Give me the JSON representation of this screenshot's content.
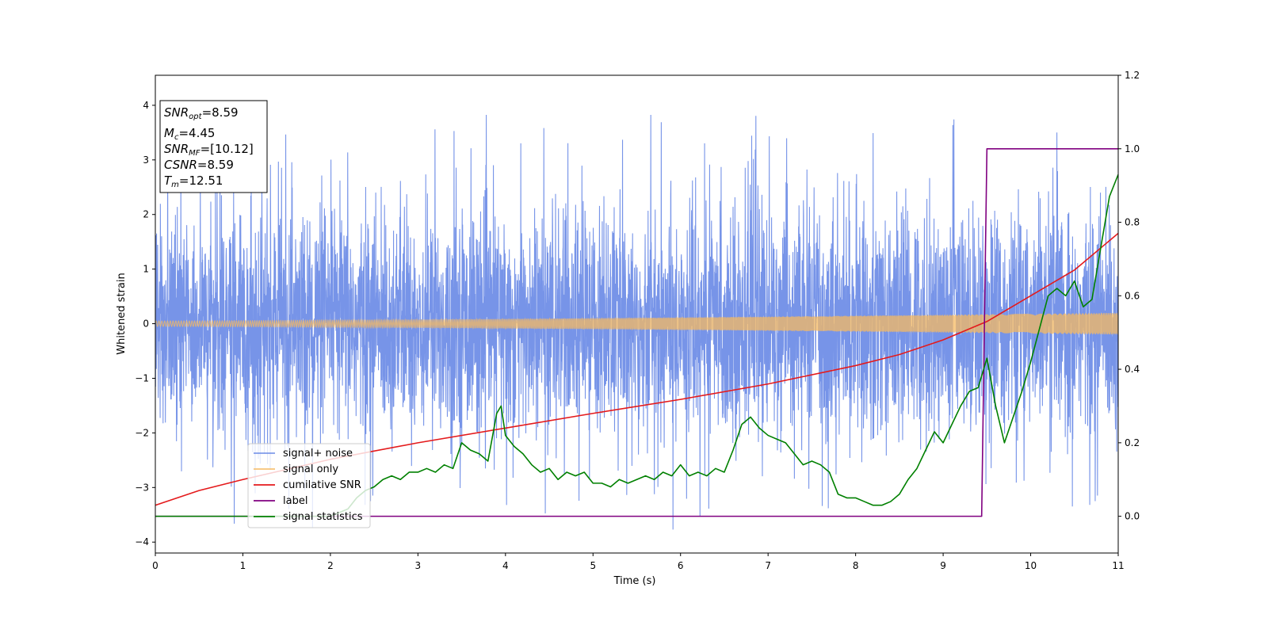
{
  "chart_data": {
    "type": "line",
    "xlabel": "Time (s)",
    "ylabel": "Whitened strain",
    "xlim": [
      0,
      11
    ],
    "ylim": [
      -4.2,
      4.55
    ],
    "y2lim": [
      -0.1,
      1.2
    ],
    "x_ticks": [
      "0",
      "1",
      "2",
      "3",
      "4",
      "5",
      "6",
      "7",
      "8",
      "9",
      "10",
      "11"
    ],
    "y_ticks": [
      "−4",
      "−3",
      "−2",
      "−1",
      "0",
      "1",
      "2",
      "3",
      "4"
    ],
    "y2_ticks": [
      "0.0",
      "0.2",
      "0.4",
      "0.6",
      "0.8",
      "1.0",
      "1.2"
    ],
    "grid": false,
    "legend_position": "lower-left",
    "annotation": {
      "lines": [
        {
          "sym": "SNR",
          "sub": "opt",
          "value": "=8.59"
        },
        {
          "sym": "M",
          "sub": "c",
          "value": "=4.45"
        },
        {
          "sym": "SNR",
          "sub": "MF",
          "value": "=[10.12]"
        },
        {
          "sym": "CSNR",
          "sub": "",
          "value": "=8.59"
        },
        {
          "sym": "T",
          "sub": "m",
          "value": "=12.51"
        }
      ]
    },
    "series": [
      {
        "name": "signal+ noise",
        "color": "#6b8be6",
        "axis": "left",
        "kind": "noise",
        "noise_band": [
          -2.0,
          2.3
        ],
        "peak_range": [
          -3.8,
          4.2
        ]
      },
      {
        "name": "signal only",
        "color": "#f5b961",
        "axis": "left",
        "kind": "chirp",
        "amplitude_start": 0.05,
        "amplitude_end": 0.2
      },
      {
        "name": "cumilative SNR",
        "color": "#e41a1c",
        "axis": "right",
        "x": [
          0,
          0.5,
          1,
          2,
          3,
          4,
          5,
          6,
          7,
          8,
          8.5,
          9,
          9.5,
          10,
          10.5,
          11
        ],
        "y": [
          0.03,
          0.07,
          0.1,
          0.155,
          0.2,
          0.24,
          0.28,
          0.318,
          0.36,
          0.41,
          0.44,
          0.48,
          0.53,
          0.6,
          0.67,
          0.77
        ]
      },
      {
        "name": "label",
        "color": "#800080",
        "axis": "right",
        "x": [
          0,
          9.44,
          9.5,
          11
        ],
        "y": [
          0,
          0,
          1,
          1
        ]
      },
      {
        "name": "signal statistics",
        "color": "#008000",
        "axis": "right",
        "x": [
          0,
          2.0,
          2.1,
          2.2,
          2.3,
          2.4,
          2.5,
          2.6,
          2.7,
          2.8,
          2.9,
          3.0,
          3.1,
          3.2,
          3.3,
          3.4,
          3.5,
          3.6,
          3.7,
          3.8,
          3.9,
          3.95,
          4.0,
          4.1,
          4.2,
          4.3,
          4.4,
          4.5,
          4.6,
          4.7,
          4.8,
          4.9,
          5.0,
          5.1,
          5.2,
          5.3,
          5.4,
          5.5,
          5.6,
          5.7,
          5.8,
          5.9,
          6.0,
          6.1,
          6.2,
          6.3,
          6.4,
          6.5,
          6.6,
          6.7,
          6.8,
          6.9,
          7.0,
          7.1,
          7.2,
          7.3,
          7.4,
          7.5,
          7.6,
          7.7,
          7.8,
          7.9,
          8.0,
          8.1,
          8.2,
          8.3,
          8.4,
          8.5,
          8.6,
          8.7,
          8.8,
          8.9,
          9.0,
          9.1,
          9.2,
          9.3,
          9.4,
          9.5,
          9.6,
          9.7,
          9.8,
          9.9,
          10.0,
          10.1,
          10.2,
          10.3,
          10.4,
          10.5,
          10.6,
          10.7,
          10.8,
          10.9,
          11.0
        ],
        "y": [
          0,
          0.0,
          0.01,
          0.02,
          0.05,
          0.07,
          0.08,
          0.1,
          0.11,
          0.1,
          0.12,
          0.12,
          0.13,
          0.12,
          0.14,
          0.13,
          0.2,
          0.18,
          0.17,
          0.15,
          0.28,
          0.3,
          0.22,
          0.19,
          0.17,
          0.14,
          0.12,
          0.13,
          0.1,
          0.12,
          0.11,
          0.12,
          0.09,
          0.09,
          0.08,
          0.1,
          0.09,
          0.1,
          0.11,
          0.1,
          0.12,
          0.11,
          0.14,
          0.11,
          0.12,
          0.11,
          0.13,
          0.12,
          0.18,
          0.25,
          0.27,
          0.24,
          0.22,
          0.21,
          0.2,
          0.17,
          0.14,
          0.15,
          0.14,
          0.12,
          0.06,
          0.05,
          0.05,
          0.04,
          0.03,
          0.03,
          0.04,
          0.06,
          0.1,
          0.13,
          0.18,
          0.23,
          0.2,
          0.25,
          0.3,
          0.34,
          0.35,
          0.43,
          0.3,
          0.2,
          0.27,
          0.34,
          0.42,
          0.51,
          0.6,
          0.62,
          0.6,
          0.64,
          0.57,
          0.59,
          0.73,
          0.87,
          0.93
        ]
      }
    ]
  }
}
